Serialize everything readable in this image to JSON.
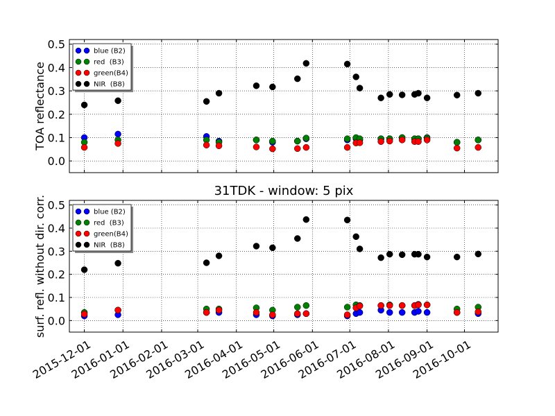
{
  "colors": {
    "blue": "#0000ff",
    "green": "#008000",
    "red": "#ff0000",
    "black": "#000000"
  },
  "chart_data": [
    {
      "type": "scatter",
      "title": "",
      "xlabel": "",
      "ylabel": "TOA reflectance",
      "xlim": [
        "2015-11-19",
        "2016-10-28"
      ],
      "ylim": [
        -0.05,
        0.52
      ],
      "yticks": [
        0.0,
        0.1,
        0.2,
        0.3,
        0.4,
        0.5
      ],
      "ytick_labels": [
        "0.0",
        "0.1",
        "0.2",
        "0.3",
        "0.4",
        "0.5"
      ],
      "grid": true,
      "legend_placement": "upper-left",
      "dates": [
        "2015-12-01",
        "2015-12-28",
        "2016-03-08",
        "2016-03-18",
        "2016-04-17",
        "2016-04-30",
        "2016-05-20",
        "2016-05-27",
        "2016-06-29",
        "2016-07-06",
        "2016-07-09",
        "2016-07-26",
        "2016-08-02",
        "2016-08-12",
        "2016-08-22",
        "2016-08-25",
        "2016-09-01",
        "2016-09-25",
        "2016-10-12"
      ],
      "series": [
        {
          "name": "blue (B2)",
          "color": "blue",
          "values": [
            0.1,
            0.115,
            0.105,
            0.085,
            0.09,
            0.08,
            0.085,
            0.095,
            0.09,
            0.095,
            0.09,
            0.095,
            0.095,
            0.1,
            0.095,
            0.095,
            0.1,
            0.08,
            0.09
          ]
        },
        {
          "name": "red  (B3)",
          "color": "green",
          "values": [
            0.08,
            0.09,
            0.09,
            0.08,
            0.09,
            0.085,
            0.085,
            0.098,
            0.095,
            0.1,
            0.095,
            0.095,
            0.095,
            0.1,
            0.095,
            0.095,
            0.098,
            0.08,
            0.09
          ]
        },
        {
          "name": "green(B4)",
          "color": "red",
          "values": [
            0.058,
            0.075,
            0.068,
            0.065,
            0.06,
            0.052,
            0.053,
            0.058,
            0.058,
            0.077,
            0.078,
            0.083,
            0.085,
            0.09,
            0.083,
            0.083,
            0.09,
            0.055,
            0.058
          ]
        },
        {
          "name": "NIR  (B8)",
          "color": "black",
          "values": [
            0.24,
            0.258,
            0.255,
            0.29,
            0.322,
            0.317,
            0.352,
            0.418,
            0.415,
            0.36,
            0.312,
            0.27,
            0.285,
            0.283,
            0.285,
            0.29,
            0.27,
            0.282,
            0.29
          ]
        }
      ]
    },
    {
      "type": "scatter",
      "title": "31TDK - window: 5 pix",
      "xlabel": "",
      "ylabel": "surf. refl. without dir. corr.",
      "xlim": [
        "2015-11-19",
        "2016-10-28"
      ],
      "ylim": [
        -0.05,
        0.52
      ],
      "yticks": [
        0.0,
        0.1,
        0.2,
        0.3,
        0.4,
        0.5
      ],
      "ytick_labels": [
        "0.0",
        "0.1",
        "0.2",
        "0.3",
        "0.4",
        "0.5"
      ],
      "xticks": [
        "2015-12-01",
        "2016-01-01",
        "2016-02-01",
        "2016-03-01",
        "2016-04-01",
        "2016-05-01",
        "2016-06-01",
        "2016-07-01",
        "2016-08-01",
        "2016-09-01",
        "2016-10-01"
      ],
      "xtick_labels": [
        "2015-12-01",
        "2016-01-01",
        "2016-02-01",
        "2016-03-01",
        "2016-04-01",
        "2016-05-01",
        "2016-06-01",
        "2016-07-01",
        "2016-08-01",
        "2016-09-01",
        "2016-10-01"
      ],
      "grid": true,
      "legend_placement": "upper-left",
      "dates": [
        "2015-12-01",
        "2015-12-28",
        "2016-03-08",
        "2016-03-18",
        "2016-04-17",
        "2016-04-30",
        "2016-05-20",
        "2016-05-27",
        "2016-06-29",
        "2016-07-06",
        "2016-07-09",
        "2016-07-26",
        "2016-08-02",
        "2016-08-12",
        "2016-08-22",
        "2016-08-25",
        "2016-09-01",
        "2016-09-25",
        "2016-10-12"
      ],
      "series": [
        {
          "name": "blue (B2)",
          "color": "blue",
          "values": [
            0.02,
            0.025,
            0.035,
            0.035,
            0.025,
            0.02,
            0.025,
            0.03,
            0.02,
            0.03,
            0.035,
            0.045,
            0.035,
            0.035,
            0.035,
            0.04,
            0.035,
            0.035,
            0.03
          ]
        },
        {
          "name": "red  (B3)",
          "color": "green",
          "values": [
            0.035,
            0.045,
            0.05,
            0.05,
            0.055,
            0.045,
            0.058,
            0.065,
            0.058,
            0.068,
            0.065,
            0.065,
            0.068,
            0.065,
            0.065,
            0.07,
            0.068,
            0.05,
            0.058
          ]
        },
        {
          "name": "green(B4)",
          "color": "red",
          "values": [
            0.028,
            0.045,
            0.035,
            0.045,
            0.035,
            0.025,
            0.03,
            0.03,
            0.025,
            0.055,
            0.063,
            0.065,
            0.065,
            0.065,
            0.065,
            0.068,
            0.068,
            0.035,
            0.038
          ]
        },
        {
          "name": "NIR  (B8)",
          "color": "black",
          "values": [
            0.22,
            0.248,
            0.25,
            0.28,
            0.322,
            0.315,
            0.355,
            0.437,
            0.435,
            0.363,
            0.31,
            0.272,
            0.287,
            0.285,
            0.287,
            0.287,
            0.275,
            0.275,
            0.288
          ]
        }
      ]
    }
  ]
}
